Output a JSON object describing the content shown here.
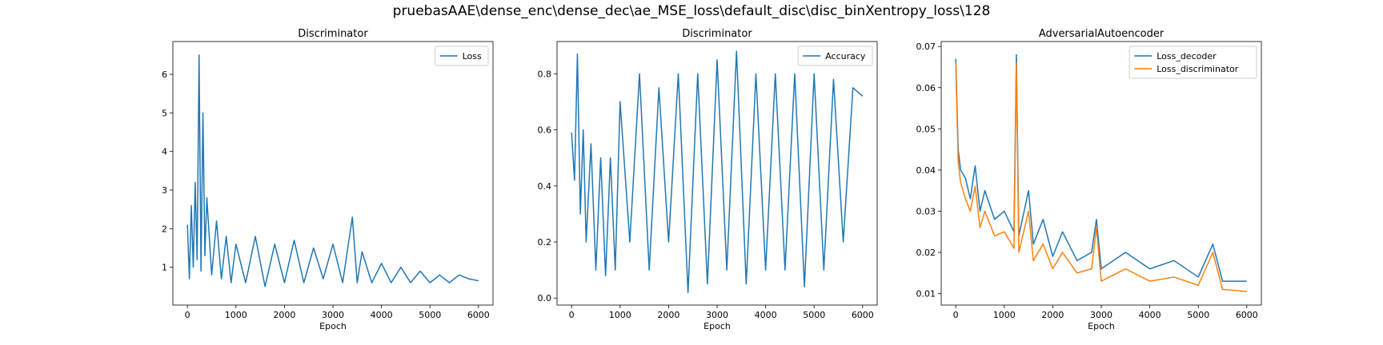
{
  "suptitle": "pruebasAAE\\dense_enc\\dense_dec\\ae_MSE_loss\\default_disc\\disc_binXentropy_loss\\128",
  "colors": {
    "blue": "#1f77b4",
    "orange": "#ff7f0e"
  },
  "chart_data": [
    {
      "type": "line",
      "title": "Discriminator",
      "xlabel": "Epoch",
      "ylabel": "",
      "xlim": [
        -300,
        6300
      ],
      "ylim": [
        0.02,
        6.85
      ],
      "xticks": [
        0,
        1000,
        2000,
        3000,
        4000,
        5000,
        6000
      ],
      "yticks": [
        1,
        2,
        3,
        4,
        5,
        6
      ],
      "legend": "top-right",
      "series": [
        {
          "name": "Loss",
          "color": "#1f77b4",
          "x": [
            0,
            40,
            80,
            120,
            160,
            200,
            240,
            280,
            320,
            360,
            400,
            500,
            600,
            700,
            800,
            900,
            1000,
            1200,
            1400,
            1600,
            1800,
            2000,
            2200,
            2400,
            2600,
            2800,
            3000,
            3200,
            3400,
            3500,
            3600,
            3800,
            4000,
            4200,
            4400,
            4600,
            4800,
            5000,
            5200,
            5400,
            5600,
            5800,
            6000
          ],
          "values": [
            2.1,
            0.7,
            2.6,
            1.0,
            3.2,
            1.2,
            6.5,
            0.9,
            5.0,
            1.3,
            2.8,
            0.8,
            2.2,
            0.7,
            1.8,
            0.6,
            1.6,
            0.6,
            1.8,
            0.5,
            1.6,
            0.6,
            1.7,
            0.6,
            1.5,
            0.7,
            1.6,
            0.6,
            2.3,
            0.6,
            1.4,
            0.6,
            1.1,
            0.6,
            1.0,
            0.6,
            0.9,
            0.6,
            0.8,
            0.6,
            0.8,
            0.7,
            0.65
          ]
        }
      ]
    },
    {
      "type": "line",
      "title": "Discriminator",
      "xlabel": "Epoch",
      "ylabel": "",
      "xlim": [
        -300,
        6300
      ],
      "ylim": [
        -0.025,
        0.915
      ],
      "xticks": [
        0,
        1000,
        2000,
        3000,
        4000,
        5000,
        6000
      ],
      "yticks": [
        0.0,
        0.2,
        0.4,
        0.6,
        0.8
      ],
      "legend": "top-right",
      "series": [
        {
          "name": "Accuracy",
          "color": "#1f77b4",
          "x": [
            0,
            60,
            120,
            180,
            240,
            300,
            400,
            500,
            600,
            700,
            800,
            900,
            1000,
            1200,
            1400,
            1600,
            1800,
            2000,
            2200,
            2400,
            2600,
            2800,
            3000,
            3200,
            3400,
            3600,
            3800,
            4000,
            4200,
            4400,
            4600,
            4800,
            5000,
            5200,
            5400,
            5600,
            5800,
            6000
          ],
          "values": [
            0.59,
            0.42,
            0.87,
            0.3,
            0.6,
            0.2,
            0.55,
            0.1,
            0.5,
            0.08,
            0.5,
            0.1,
            0.7,
            0.2,
            0.8,
            0.1,
            0.75,
            0.2,
            0.8,
            0.02,
            0.8,
            0.05,
            0.85,
            0.1,
            0.88,
            0.05,
            0.8,
            0.1,
            0.8,
            0.1,
            0.8,
            0.04,
            0.8,
            0.1,
            0.78,
            0.2,
            0.75,
            0.72
          ]
        }
      ]
    },
    {
      "type": "line",
      "title": "AdversarialAutoencoder",
      "xlabel": "Epoch",
      "ylabel": "",
      "xlim": [
        -300,
        6300
      ],
      "ylim": [
        0.0072,
        0.0712
      ],
      "xticks": [
        0,
        1000,
        2000,
        3000,
        4000,
        5000,
        6000
      ],
      "yticks": [
        0.01,
        0.02,
        0.03,
        0.04,
        0.05,
        0.06,
        0.07
      ],
      "legend": "top-right",
      "series": [
        {
          "name": "Loss_decoder",
          "color": "#1f77b4",
          "x": [
            0,
            50,
            100,
            200,
            300,
            400,
            500,
            600,
            800,
            1000,
            1200,
            1250,
            1300,
            1500,
            1600,
            1800,
            2000,
            2200,
            2500,
            2800,
            2900,
            3000,
            3500,
            4000,
            4500,
            5000,
            5300,
            5500,
            6000
          ],
          "values": [
            0.067,
            0.045,
            0.04,
            0.038,
            0.033,
            0.041,
            0.03,
            0.035,
            0.028,
            0.03,
            0.025,
            0.068,
            0.024,
            0.035,
            0.022,
            0.028,
            0.019,
            0.025,
            0.018,
            0.02,
            0.028,
            0.016,
            0.02,
            0.016,
            0.018,
            0.014,
            0.022,
            0.013,
            0.013
          ]
        },
        {
          "name": "Loss_discriminator",
          "color": "#ff7f0e",
          "x": [
            0,
            50,
            100,
            200,
            300,
            400,
            500,
            600,
            800,
            1000,
            1200,
            1250,
            1300,
            1500,
            1600,
            1800,
            2000,
            2200,
            2500,
            2800,
            2900,
            3000,
            3500,
            4000,
            4500,
            5000,
            5300,
            5500,
            6000
          ],
          "values": [
            0.066,
            0.042,
            0.037,
            0.033,
            0.03,
            0.036,
            0.026,
            0.03,
            0.024,
            0.025,
            0.021,
            0.066,
            0.02,
            0.03,
            0.018,
            0.022,
            0.016,
            0.02,
            0.015,
            0.016,
            0.026,
            0.013,
            0.016,
            0.013,
            0.014,
            0.012,
            0.02,
            0.011,
            0.0105
          ]
        }
      ]
    }
  ]
}
